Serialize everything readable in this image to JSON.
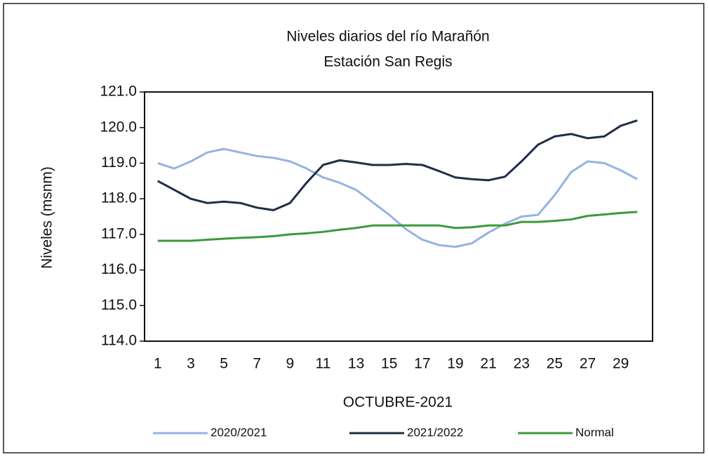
{
  "chart_data": {
    "type": "line",
    "title": "Niveles  diarios del río Marañón",
    "subtitle": "Estación San Regis",
    "y_label": "Niveles  (msnm)",
    "x_label": "OCTUBRE-2021",
    "categories": [
      1,
      null,
      3,
      null,
      5,
      null,
      7,
      null,
      9,
      null,
      11,
      null,
      13,
      null,
      15,
      null,
      17,
      null,
      19,
      null,
      21,
      null,
      23,
      null,
      25,
      null,
      27,
      null,
      29,
      null
    ],
    "series": [
      {
        "name": "2020/2021",
        "color": "#95b3e0",
        "values": [
          119.0,
          118.85,
          119.05,
          119.3,
          119.4,
          119.3,
          119.2,
          119.15,
          119.05,
          118.85,
          118.6,
          118.45,
          118.25,
          117.9,
          117.55,
          117.15,
          116.85,
          116.7,
          116.65,
          116.75,
          117.05,
          117.3,
          117.5,
          117.55,
          118.1,
          118.75,
          119.05,
          119.0,
          118.8,
          118.55
        ]
      },
      {
        "name": "2021/2022",
        "color": "#1f2d45",
        "values": [
          118.5,
          118.25,
          118.0,
          117.88,
          117.92,
          117.88,
          117.75,
          117.68,
          117.88,
          118.45,
          118.95,
          119.08,
          119.02,
          118.95,
          118.95,
          118.98,
          118.95,
          118.78,
          118.6,
          118.55,
          118.52,
          118.62,
          119.05,
          119.52,
          119.75,
          119.82,
          119.7,
          119.75,
          120.05,
          120.2
        ]
      },
      {
        "name": "Normal",
        "color": "#3a9a3a",
        "values": [
          116.82,
          116.82,
          116.82,
          116.85,
          116.88,
          116.9,
          116.92,
          116.95,
          117.0,
          117.03,
          117.07,
          117.13,
          117.18,
          117.25,
          117.25,
          117.25,
          117.25,
          117.25,
          117.18,
          117.2,
          117.25,
          117.25,
          117.35,
          117.35,
          117.38,
          117.42,
          117.52,
          117.56,
          117.6,
          117.63
        ]
      }
    ],
    "ylim": [
      114,
      121
    ],
    "yticks": [
      {
        "value": 114,
        "label": "114.0"
      },
      {
        "value": 115,
        "label": "115.0"
      },
      {
        "value": 116,
        "label": "116.0"
      },
      {
        "value": 117,
        "label": "117.0"
      },
      {
        "value": 118,
        "label": "118.0"
      },
      {
        "value": 119,
        "label": "119.0"
      },
      {
        "value": 120,
        "label": "120.0"
      },
      {
        "value": 121,
        "label": "121.0"
      }
    ],
    "legend": "bottom"
  }
}
